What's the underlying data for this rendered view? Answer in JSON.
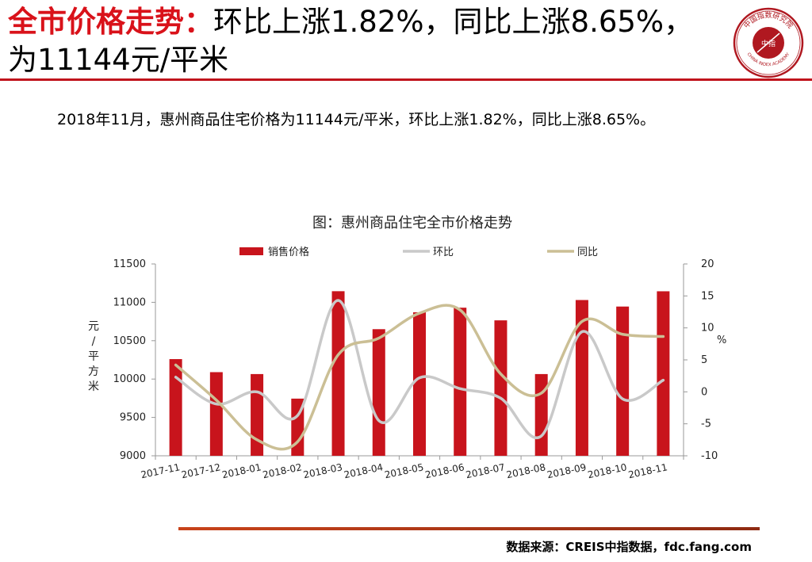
{
  "header": {
    "title_red": "全市价格走势：",
    "title_rest": "环比上涨1.82%，同比上涨8.65%，为11144元/平米"
  },
  "logo": {
    "icon": "china-index-academy-seal",
    "text_top": "中国指数研究院",
    "text_center": "中指",
    "text_bottom": "CHINA INDEX ACADEMY"
  },
  "summary": "2018年11月，惠州商品住宅价格为11144元/平米，环比上涨1.82%，同比上涨8.65%。",
  "footer": {
    "source": "数据来源：CREIS中指数据，fdc.fang.com"
  },
  "colors": {
    "accent_red": "#d9121a",
    "bar": "#c8141c",
    "mom_line": "#c9c9c9",
    "yoy_line": "#cbbf95"
  },
  "chart_data": {
    "type": "bar",
    "title": "图：惠州商品住宅全市价格走势",
    "categories": [
      "2017-11",
      "2017-12",
      "2018-01",
      "2018-02",
      "2018-03",
      "2018-04",
      "2018-05",
      "2018-06",
      "2018-07",
      "2018-08",
      "2018-09",
      "2018-10",
      "2018-11"
    ],
    "y_left": {
      "label": "元/平方米",
      "ylim": [
        9000,
        11500
      ],
      "ticks": [
        9000,
        9500,
        10000,
        10500,
        11000,
        11500
      ]
    },
    "y_right": {
      "label": "%",
      "ylim": [
        -10,
        20
      ],
      "ticks": [
        -10,
        -5,
        0,
        5,
        10,
        15,
        20
      ]
    },
    "legend_position": "top",
    "grid": false,
    "series": [
      {
        "name": "销售价格",
        "type": "bar",
        "axis": "left",
        "values": [
          10260,
          10090,
          10065,
          9745,
          11145,
          10650,
          10870,
          10930,
          10765,
          10065,
          11030,
          10945,
          11144
        ]
      },
      {
        "name": "环比",
        "type": "line",
        "axis": "right",
        "values": [
          2.3,
          -1.9,
          0.0,
          -3.7,
          14.3,
          -4.5,
          2.2,
          0.5,
          -1.0,
          -6.9,
          9.4,
          -1.1,
          1.82
        ]
      },
      {
        "name": "同比",
        "type": "line",
        "axis": "right",
        "values": [
          4.2,
          -1.3,
          -7.5,
          -7.8,
          5.8,
          8.4,
          12.3,
          12.8,
          2.8,
          -0.2,
          11.0,
          9.0,
          8.65
        ]
      }
    ]
  }
}
